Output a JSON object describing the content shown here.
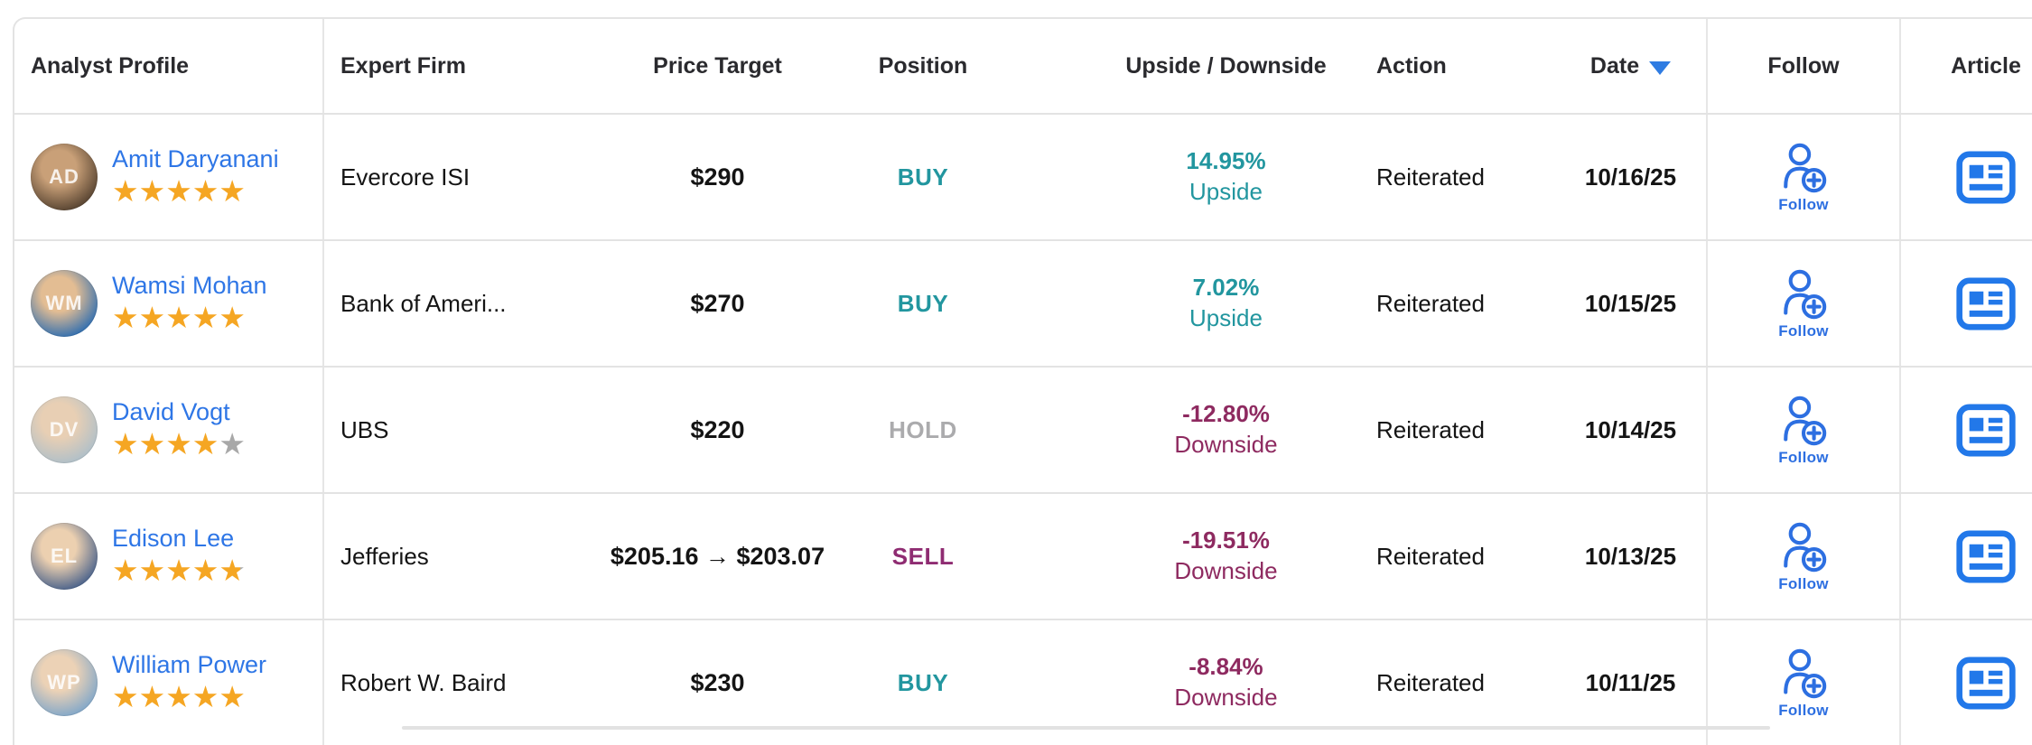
{
  "header": {
    "columns": [
      "Analyst Profile",
      "Expert Firm",
      "Price Target",
      "Position",
      "Upside / Downside",
      "Action",
      "Date",
      "Follow",
      "Article"
    ],
    "sorted_by": "Date",
    "sort_direction": "descending"
  },
  "colors": {
    "link": "#2e76e6",
    "star_full": "#f5a623",
    "star_empty": "#a8a8a8",
    "buy": "#22969f",
    "hold": "#ababad",
    "sell": "#8f2c72",
    "upside": "#22969f",
    "downside": "#8e2a60",
    "follow": "#2d6fe1",
    "article": "#2278e9",
    "sort_arrow": "#2f7ce2"
  },
  "rows": [
    {
      "analyst": "Amit Daryanani",
      "avatar": {
        "initials": "AD",
        "skin": "#c9a078",
        "bg": "#54412f"
      },
      "stars": 5,
      "firm": "Evercore ISI",
      "price_target": "$290",
      "position": "BUY",
      "position_type": "buy",
      "change_pct": "14.95%",
      "change_dir": "Upside",
      "action": "Reiterated",
      "date": "10/16/25",
      "follow_label": "Follow"
    },
    {
      "analyst": "Wamsi Mohan",
      "avatar": {
        "initials": "WM",
        "skin": "#e3bd93",
        "bg": "#2e6db0"
      },
      "stars": 5,
      "firm": "Bank of Ameri...",
      "price_target": "$270",
      "position": "BUY",
      "position_type": "buy",
      "change_pct": "7.02%",
      "change_dir": "Upside",
      "action": "Reiterated",
      "date": "10/15/25",
      "follow_label": "Follow"
    },
    {
      "analyst": "David Vogt",
      "avatar": {
        "initials": "DV",
        "skin": "#e8cfb4",
        "bg": "#aebfc9"
      },
      "stars": 4,
      "firm": "UBS",
      "price_target": "$220",
      "position": "HOLD",
      "position_type": "hold",
      "change_pct": "-12.80%",
      "change_dir": "Downside",
      "action": "Reiterated",
      "date": "10/14/25",
      "follow_label": "Follow"
    },
    {
      "analyst": "Edison Lee",
      "avatar": {
        "initials": "EL",
        "skin": "#ecd0b0",
        "bg": "#47608a"
      },
      "stars": 4.8,
      "firm": "Jefferies",
      "price_target": "$205.16 → $203.07",
      "position": "SELL",
      "position_type": "sell",
      "change_pct": "-19.51%",
      "change_dir": "Downside",
      "action": "Reiterated",
      "date": "10/13/25",
      "follow_label": "Follow"
    },
    {
      "analyst": "William Power",
      "avatar": {
        "initials": "WP",
        "skin": "#ecd2b6",
        "bg": "#7fa6c9"
      },
      "stars": 5,
      "firm": "Robert W. Baird",
      "price_target": "$230",
      "position": "BUY",
      "position_type": "buy",
      "change_pct": "-8.84%",
      "change_dir": "Downside",
      "action": "Reiterated",
      "date": "10/11/25",
      "follow_label": "Follow"
    }
  ]
}
